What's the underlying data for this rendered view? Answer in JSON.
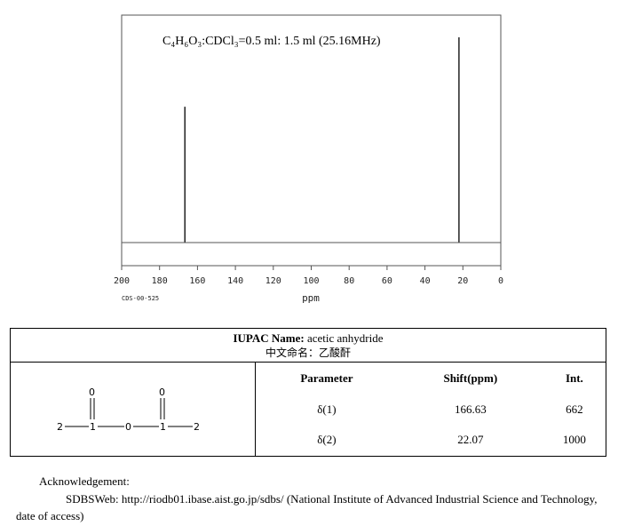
{
  "chart_data": {
    "type": "line",
    "title": "C₄H₆O₃:CDCl₃=0.5 ml: 1.5 ml (25.16MHz)",
    "xlabel": "ppm",
    "ylabel": "",
    "xlim": [
      200,
      0
    ],
    "x_reversed": true,
    "ylim": [
      0,
      1000
    ],
    "x_ticks": [
      200,
      180,
      160,
      140,
      120,
      100,
      80,
      60,
      40,
      20,
      0
    ],
    "code": "CDS-00-525",
    "peaks": [
      {
        "shift": 166.63,
        "intensity": 662
      },
      {
        "shift": 22.07,
        "intensity": 1000
      }
    ],
    "grid": false
  },
  "compound": {
    "iupac_label": "IUPAC Name:",
    "iupac_name": "acetic anhydride",
    "chinese_label": "中文命名：",
    "chinese_name": "乙酸酐"
  },
  "structure": {
    "atoms": [
      "2",
      "1",
      "0",
      "1",
      "2",
      "0",
      "0"
    ]
  },
  "table": {
    "headers": [
      "Parameter",
      "Shift(ppm)",
      "Int."
    ],
    "rows": [
      [
        "δ(1)",
        "166.63",
        "662"
      ],
      [
        "δ(2)",
        "22.07",
        "1000"
      ]
    ]
  },
  "acknowledgement": {
    "title": "Acknowledgement:",
    "text": "SDBSWeb: http://riodb01.ibase.aist.go.jp/sdbs/ (National Institute of Advanced Industrial Science and Technology, date of access)"
  }
}
